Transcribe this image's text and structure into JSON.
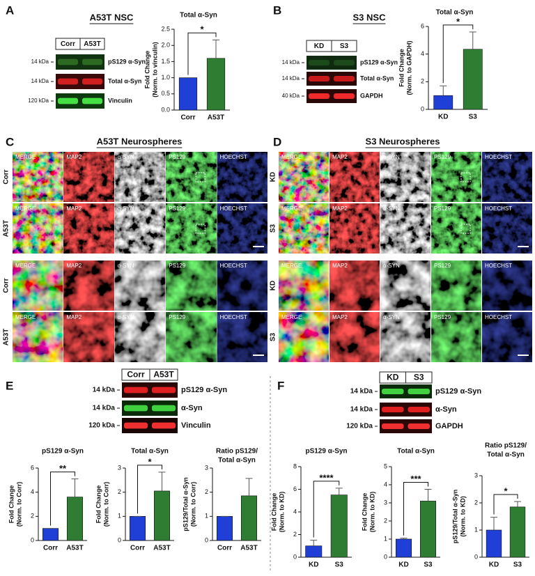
{
  "panels": {
    "A": {
      "letter": "A",
      "title": "A53T NSC",
      "blot": {
        "lanes": [
          "Corr",
          "A53T"
        ],
        "markers": [
          "14 kDa",
          "14 kDa",
          "120 kDa"
        ],
        "bands": [
          "pS129 α-Syn",
          "Total α-Syn",
          "Vinculin"
        ]
      }
    },
    "B": {
      "letter": "B",
      "title": "S3 NSC",
      "blot": {
        "lanes": [
          "KD",
          "S3"
        ],
        "markers": [
          "14 kDa",
          "14 kDa",
          "40 kDa"
        ],
        "bands": [
          "pS129 α-Syn",
          "Total α-Syn",
          "GAPDH"
        ]
      }
    },
    "C": {
      "letter": "C",
      "title": "A53T Neurospheres",
      "channels": [
        "MERGE",
        "MAP2",
        "α-SYN",
        "PS129",
        "HOECHST"
      ],
      "rows": [
        "Corr",
        "A53T"
      ]
    },
    "D": {
      "letter": "D",
      "title": "S3 Neurospheres",
      "channels": [
        "MERGE",
        "MAP2",
        "α-SYN",
        "PS129",
        "HOECHST"
      ],
      "rows": [
        "KD",
        "S3"
      ]
    },
    "E": {
      "letter": "E",
      "blot": {
        "lanes": [
          "Corr",
          "A53T"
        ],
        "markers": [
          "14 kDa",
          "14 kDa",
          "120 kDa"
        ],
        "bands": [
          "pS129 α-Syn",
          "α-Syn",
          "Vinculin"
        ]
      }
    },
    "F": {
      "letter": "F",
      "blot": {
        "lanes": [
          "KD",
          "S3"
        ],
        "markers": [
          "14 kDa",
          "14 kDa",
          "120 kDa"
        ],
        "bands": [
          "pS129 α-Syn",
          "α-Syn",
          "GAPDH"
        ]
      }
    }
  },
  "chart_data": [
    {
      "type": "bar",
      "title": [
        "Total α-Syn"
      ],
      "y_label": [
        "Fold Change",
        "(Norm. to vinculin)"
      ],
      "categories": [
        "Corr",
        "A53T"
      ],
      "values": [
        1.0,
        1.6
      ],
      "errors": [
        0,
        0.57
      ],
      "colors": [
        "#1f3fd6",
        "#2e7d32"
      ],
      "ylim": [
        0,
        2.5
      ],
      "yticks": [
        {
          "value": 0,
          "label": "0.0"
        },
        {
          "value": 0.5,
          "label": "0.5"
        },
        {
          "value": 1,
          "label": "1.0"
        },
        {
          "value": 1.5,
          "label": "1.5"
        },
        {
          "value": 2,
          "label": "2.0"
        },
        {
          "value": 2.5,
          "label": "2.5"
        }
      ],
      "significance": "*"
    },
    {
      "type": "bar",
      "title": [
        "Total α-Syn"
      ],
      "y_label": [
        "Fold Change",
        "(Norm. to GAPDH)"
      ],
      "categories": [
        "KD",
        "S3"
      ],
      "values": [
        1.0,
        4.35
      ],
      "errors": [
        0.7,
        1.25
      ],
      "colors": [
        "#1f3fd6",
        "#2e7d32"
      ],
      "ylim": [
        0,
        6
      ],
      "yticks": [
        0,
        2,
        4,
        6
      ],
      "significance": "*"
    },
    {
      "type": "bar",
      "title": [
        "pS129 α-Syn"
      ],
      "y_label": [
        "Fold Change",
        "(Norm. to Corr)"
      ],
      "categories": [
        "Corr",
        "A53T"
      ],
      "values": [
        1.0,
        3.6
      ],
      "errors": [
        0,
        1.5
      ],
      "colors": [
        "#1f3fd6",
        "#2e7d32"
      ],
      "ylim": [
        0,
        6
      ],
      "yticks": [
        0,
        2,
        4,
        6
      ],
      "significance": "**"
    },
    {
      "type": "bar",
      "title": [
        "Total α-Syn"
      ],
      "y_label": [
        "Fold Change",
        "(Norm. to Corr)"
      ],
      "categories": [
        "Corr",
        "A53T"
      ],
      "values": [
        1.0,
        2.05
      ],
      "errors": [
        0,
        0.78
      ],
      "colors": [
        "#1f3fd6",
        "#2e7d32"
      ],
      "ylim": [
        0,
        3
      ],
      "yticks": [
        0,
        1,
        2,
        3
      ],
      "significance": "*"
    },
    {
      "type": "bar",
      "title": [
        "Ratio pS129/",
        "Total α-Syn"
      ],
      "y_label": [
        "pS129/Total α-Syn",
        "(Norm. to Corr)"
      ],
      "categories": [
        "Corr",
        "A53T"
      ],
      "values": [
        1.0,
        1.85
      ],
      "errors": [
        0,
        0.72
      ],
      "colors": [
        "#1f3fd6",
        "#2e7d32"
      ],
      "ylim": [
        0,
        3
      ],
      "yticks": [
        0,
        1,
        2,
        3
      ]
    },
    {
      "type": "bar",
      "title": [
        "pS129 α-Syn"
      ],
      "y_label": [
        "Fold Change",
        "(Norm. to KD)"
      ],
      "categories": [
        "KD",
        "S3"
      ],
      "values": [
        1.0,
        5.5
      ],
      "errors": [
        0.5,
        0.6
      ],
      "colors": [
        "#1f3fd6",
        "#2e7d32"
      ],
      "ylim": [
        0,
        8
      ],
      "yticks": [
        0,
        2,
        4,
        6,
        8
      ],
      "significance": "****"
    },
    {
      "type": "bar",
      "title": [
        "Total α-Syn"
      ],
      "y_label": [
        "Fold Change",
        "(Norm. to KD)"
      ],
      "categories": [
        "KD",
        "S3"
      ],
      "values": [
        1.0,
        3.1
      ],
      "errors": [
        0.05,
        0.65
      ],
      "colors": [
        "#1f3fd6",
        "#2e7d32"
      ],
      "ylim": [
        0,
        5
      ],
      "yticks": [
        0,
        1,
        2,
        3,
        4,
        5
      ],
      "significance": "***"
    },
    {
      "type": "bar",
      "title": [
        "Ratio pS129/",
        "Total α-Syn"
      ],
      "y_label": [
        "pS129/Total α-Syn",
        "(Norm. to KD)"
      ],
      "categories": [
        "KD",
        "S3"
      ],
      "values": [
        1.0,
        1.85
      ],
      "errors": [
        0.47,
        0.2
      ],
      "colors": [
        "#1f3fd6",
        "#2e7d32"
      ],
      "ylim": [
        0,
        3
      ],
      "yticks": [
        0,
        1,
        2,
        3
      ],
      "significance": "*"
    }
  ]
}
